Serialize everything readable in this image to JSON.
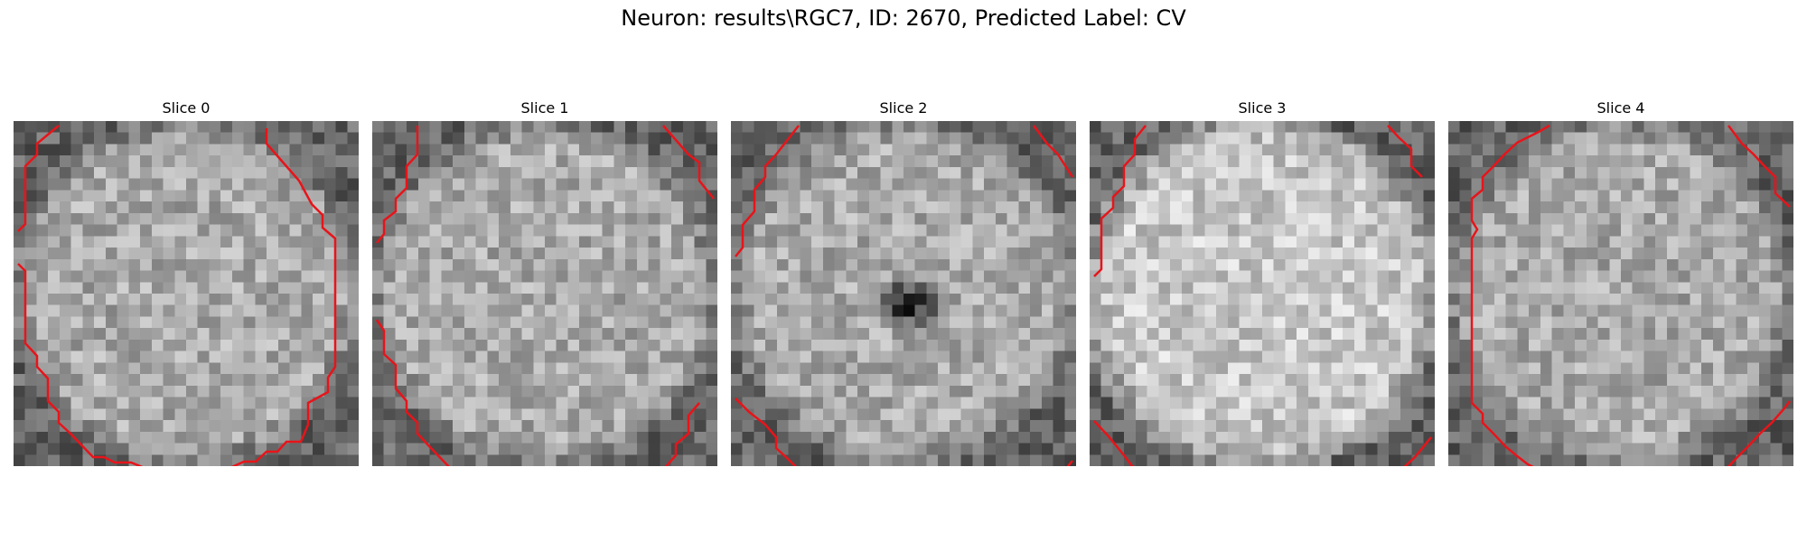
{
  "figure": {
    "title": "Neuron: results\\RGC7, ID: 2670, Predicted Label: CV"
  },
  "slices": [
    {
      "label": "Slice 0",
      "brightness": "medium",
      "dark_center": false
    },
    {
      "label": "Slice 1",
      "brightness": "medium",
      "dark_center": false
    },
    {
      "label": "Slice 2",
      "brightness": "medium",
      "dark_center": true
    },
    {
      "label": "Slice 3",
      "brightness": "bright",
      "dark_center": false
    },
    {
      "label": "Slice 4",
      "brightness": "medium",
      "dark_center": false
    }
  ],
  "colors": {
    "contour": "#e8141a",
    "background": "#ffffff"
  }
}
